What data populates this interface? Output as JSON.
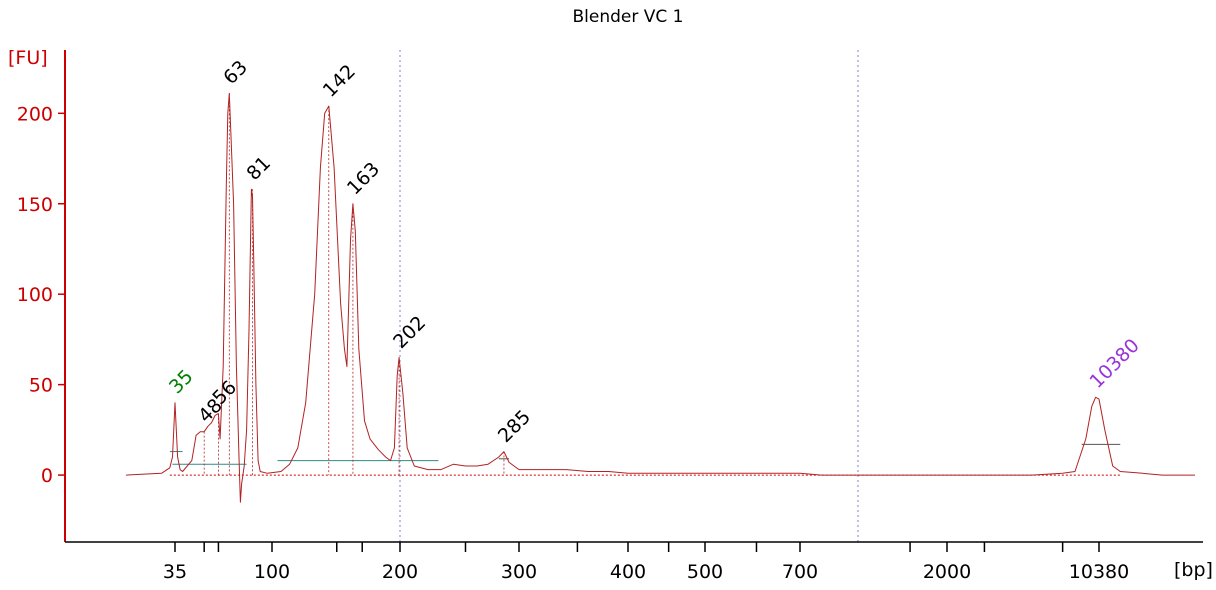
{
  "chart_data": {
    "type": "line",
    "title": "Blender VC 1",
    "ylabel": "[FU]",
    "xlabel": "[bp]",
    "ylim": [
      -37,
      235
    ],
    "yticks": [
      0,
      50,
      100,
      150,
      200
    ],
    "xticks": [
      "35",
      "100",
      "200",
      "300",
      "400",
      "500",
      "700",
      "2000",
      "10380"
    ],
    "x_scale": "sizing-ladder",
    "series": [
      {
        "points": [
          [
            20,
            0
          ],
          [
            30,
            1
          ],
          [
            33,
            4
          ],
          [
            34,
            10
          ],
          [
            35,
            40
          ],
          [
            36,
            10
          ],
          [
            37,
            3
          ],
          [
            38,
            2
          ],
          [
            42,
            8
          ],
          [
            44,
            22
          ],
          [
            46,
            24
          ],
          [
            48,
            24
          ],
          [
            50,
            27
          ],
          [
            52,
            29
          ],
          [
            54,
            33
          ],
          [
            56,
            34
          ],
          [
            57,
            20
          ],
          [
            59,
            60
          ],
          [
            61,
            160
          ],
          [
            62,
            200
          ],
          [
            63,
            211
          ],
          [
            64,
            190
          ],
          [
            66,
            150
          ],
          [
            68,
            60
          ],
          [
            70,
            10
          ],
          [
            71,
            -15
          ],
          [
            72,
            -5
          ],
          [
            74,
            5
          ],
          [
            76,
            25
          ],
          [
            78,
            80
          ],
          [
            80,
            158
          ],
          [
            81,
            154
          ],
          [
            82,
            120
          ],
          [
            84,
            50
          ],
          [
            86,
            8
          ],
          [
            88,
            2
          ],
          [
            95,
            1
          ],
          [
            105,
            2
          ],
          [
            110,
            6
          ],
          [
            115,
            15
          ],
          [
            120,
            40
          ],
          [
            126,
            100
          ],
          [
            130,
            170
          ],
          [
            133,
            200
          ],
          [
            136,
            204
          ],
          [
            140,
            170
          ],
          [
            145,
            95
          ],
          [
            148,
            70
          ],
          [
            150,
            60
          ],
          [
            153,
            130
          ],
          [
            155,
            150
          ],
          [
            157,
            135
          ],
          [
            160,
            70
          ],
          [
            165,
            30
          ],
          [
            170,
            20
          ],
          [
            178,
            14
          ],
          [
            185,
            10
          ],
          [
            190,
            8
          ],
          [
            194,
            15
          ],
          [
            197,
            55
          ],
          [
            199,
            65
          ],
          [
            202,
            45
          ],
          [
            205,
            15
          ],
          [
            210,
            5
          ],
          [
            220,
            3
          ],
          [
            230,
            3
          ],
          [
            240,
            6
          ],
          [
            250,
            5
          ],
          [
            260,
            5
          ],
          [
            270,
            6
          ],
          [
            280,
            10
          ],
          [
            285,
            13
          ],
          [
            290,
            7
          ],
          [
            300,
            3
          ],
          [
            320,
            3
          ],
          [
            340,
            3
          ],
          [
            360,
            2
          ],
          [
            380,
            2
          ],
          [
            400,
            1
          ],
          [
            450,
            1
          ],
          [
            500,
            1
          ],
          [
            600,
            1
          ],
          [
            700,
            1
          ],
          [
            800,
            0
          ],
          [
            1000,
            0
          ],
          [
            1500,
            0
          ],
          [
            2000,
            0
          ],
          [
            3000,
            0
          ],
          [
            5000,
            0
          ],
          [
            7000,
            1
          ],
          [
            8000,
            2
          ],
          [
            9000,
            20
          ],
          [
            9600,
            38
          ],
          [
            10000,
            43
          ],
          [
            10380,
            42
          ],
          [
            10800,
            25
          ],
          [
            11400,
            5
          ],
          [
            12000,
            2
          ],
          [
            14000,
            1
          ],
          [
            16000,
            0
          ],
          [
            20000,
            0
          ]
        ]
      }
    ],
    "peak_labels": [
      {
        "text": "35",
        "x": 35,
        "y": 40,
        "color": "#008000"
      },
      {
        "text": "48",
        "x": 48,
        "y": 24,
        "color": "#000000"
      },
      {
        "text": "56",
        "x": 56,
        "y": 34,
        "color": "#000000"
      },
      {
        "text": "63",
        "x": 63,
        "y": 211,
        "color": "#000000"
      },
      {
        "text": "81",
        "x": 81,
        "y": 158,
        "color": "#000000"
      },
      {
        "text": "142",
        "x": 136,
        "y": 204,
        "color": "#000000"
      },
      {
        "text": "163",
        "x": 155,
        "y": 150,
        "color": "#000000"
      },
      {
        "text": "202",
        "x": 199,
        "y": 65,
        "color": "#000000"
      },
      {
        "text": "285",
        "x": 285,
        "y": 13,
        "color": "#000000"
      },
      {
        "text": "10380",
        "x": 10000,
        "y": 43,
        "color": "#9933dd"
      }
    ],
    "region_lines": [
      {
        "x1": 34,
        "x2": 76,
        "y": 6,
        "color": "#2e8b8b"
      },
      {
        "x1": 103,
        "x2": 228,
        "y": 8,
        "color": "#2e8b8b"
      },
      {
        "x1": 33,
        "x2": 38,
        "y": 13,
        "color": "#2e8b8b"
      },
      {
        "x1": 8600,
        "x2": 12000,
        "y": 17,
        "color": "#555555"
      },
      {
        "x1": 280,
        "x2": 290,
        "y": 9,
        "color": "#555555"
      }
    ],
    "markers": [
      200,
      1000
    ],
    "colors": {
      "axis": "#cc0000",
      "trace": "#b22222",
      "marker": "#8080c0",
      "baseline": "#cc0000"
    }
  }
}
